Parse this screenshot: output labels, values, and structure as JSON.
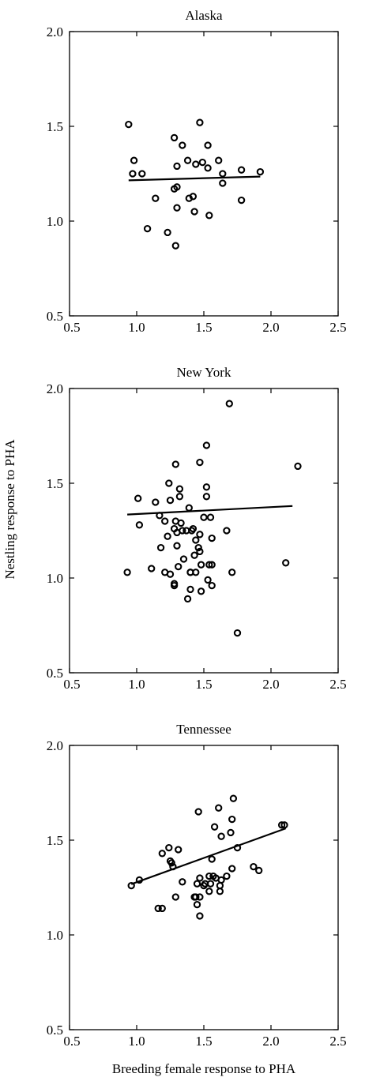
{
  "figure": {
    "ylabel": "Nestling response to PHA",
    "xlabel": "Breeding female response to PHA"
  },
  "chart_data": [
    {
      "type": "scatter",
      "title": "Alaska",
      "xlim": [
        0.5,
        2.5
      ],
      "ylim": [
        0.5,
        2.0
      ],
      "xticks": [
        "0.5",
        "1.0",
        "1.5",
        "2.0",
        "2.5"
      ],
      "yticks": [
        "0.5",
        "1.0",
        "1.5",
        "2.0"
      ],
      "points": [
        [
          0.94,
          1.51
        ],
        [
          0.98,
          1.32
        ],
        [
          0.97,
          1.25
        ],
        [
          1.04,
          1.25
        ],
        [
          1.14,
          1.12
        ],
        [
          1.08,
          0.96
        ],
        [
          1.23,
          0.94
        ],
        [
          1.28,
          1.44
        ],
        [
          1.3,
          1.29
        ],
        [
          1.3,
          1.18
        ],
        [
          1.28,
          1.17
        ],
        [
          1.3,
          1.07
        ],
        [
          1.29,
          0.87
        ],
        [
          1.34,
          1.4
        ],
        [
          1.38,
          1.32
        ],
        [
          1.39,
          1.12
        ],
        [
          1.42,
          1.13
        ],
        [
          1.44,
          1.3
        ],
        [
          1.47,
          1.52
        ],
        [
          1.49,
          1.31
        ],
        [
          1.43,
          1.05
        ],
        [
          1.53,
          1.4
        ],
        [
          1.53,
          1.28
        ],
        [
          1.54,
          1.03
        ],
        [
          1.61,
          1.32
        ],
        [
          1.64,
          1.25
        ],
        [
          1.64,
          1.2
        ],
        [
          1.78,
          1.27
        ],
        [
          1.78,
          1.11
        ],
        [
          1.92,
          1.26
        ]
      ],
      "fit": {
        "x": [
          0.94,
          1.92
        ],
        "y": [
          1.215,
          1.235
        ]
      }
    },
    {
      "type": "scatter",
      "title": "New York",
      "xlim": [
        0.5,
        2.5
      ],
      "ylim": [
        0.5,
        2.0
      ],
      "xticks": [
        "0.5",
        "1.0",
        "1.5",
        "2.0",
        "2.5"
      ],
      "yticks": [
        "0.5",
        "1.0",
        "1.5",
        "2.0"
      ],
      "points": [
        [
          0.93,
          1.03
        ],
        [
          1.01,
          1.42
        ],
        [
          1.02,
          1.28
        ],
        [
          1.11,
          1.05
        ],
        [
          1.14,
          1.4
        ],
        [
          1.17,
          1.33
        ],
        [
          1.18,
          1.16
        ],
        [
          1.21,
          1.3
        ],
        [
          1.21,
          1.03
        ],
        [
          1.23,
          1.22
        ],
        [
          1.24,
          1.5
        ],
        [
          1.25,
          1.41
        ],
        [
          1.25,
          1.02
        ],
        [
          1.28,
          1.26
        ],
        [
          1.28,
          0.97
        ],
        [
          1.28,
          0.96
        ],
        [
          1.29,
          1.6
        ],
        [
          1.29,
          1.3
        ],
        [
          1.3,
          1.24
        ],
        [
          1.3,
          1.17
        ],
        [
          1.31,
          1.06
        ],
        [
          1.32,
          1.47
        ],
        [
          1.32,
          1.43
        ],
        [
          1.33,
          1.29
        ],
        [
          1.34,
          1.25
        ],
        [
          1.35,
          1.1
        ],
        [
          1.37,
          1.25
        ],
        [
          1.38,
          0.89
        ],
        [
          1.39,
          1.37
        ],
        [
          1.4,
          1.03
        ],
        [
          1.4,
          1.03
        ],
        [
          1.4,
          0.94
        ],
        [
          1.41,
          1.25
        ],
        [
          1.42,
          1.26
        ],
        [
          1.43,
          1.12
        ],
        [
          1.44,
          1.2
        ],
        [
          1.44,
          1.03
        ],
        [
          1.46,
          1.16
        ],
        [
          1.47,
          1.14
        ],
        [
          1.47,
          1.61
        ],
        [
          1.47,
          1.23
        ],
        [
          1.48,
          1.07
        ],
        [
          1.48,
          0.93
        ],
        [
          1.5,
          1.32
        ],
        [
          1.52,
          1.7
        ],
        [
          1.52,
          1.48
        ],
        [
          1.52,
          1.43
        ],
        [
          1.53,
          0.99
        ],
        [
          1.54,
          1.07
        ],
        [
          1.55,
          1.32
        ],
        [
          1.56,
          1.21
        ],
        [
          1.56,
          1.07
        ],
        [
          1.56,
          0.96
        ],
        [
          1.67,
          1.25
        ],
        [
          1.69,
          1.92
        ],
        [
          1.71,
          1.03
        ],
        [
          1.75,
          0.71
        ],
        [
          2.11,
          1.08
        ],
        [
          2.2,
          1.59
        ]
      ],
      "fit": {
        "x": [
          0.93,
          2.16
        ],
        "y": [
          1.335,
          1.38
        ]
      }
    },
    {
      "type": "scatter",
      "title": "Tennessee",
      "xlim": [
        0.5,
        2.5
      ],
      "ylim": [
        0.5,
        2.0
      ],
      "xticks": [
        "0.5",
        "1.0",
        "1.5",
        "2.0",
        "2.5"
      ],
      "yticks": [
        "0.5",
        "1.0",
        "1.5",
        "2.0"
      ],
      "points": [
        [
          0.96,
          1.26
        ],
        [
          1.02,
          1.29
        ],
        [
          1.16,
          1.14
        ],
        [
          1.19,
          1.14
        ],
        [
          1.19,
          1.43
        ],
        [
          1.24,
          1.46
        ],
        [
          1.25,
          1.39
        ],
        [
          1.26,
          1.38
        ],
        [
          1.27,
          1.36
        ],
        [
          1.29,
          1.2
        ],
        [
          1.31,
          1.45
        ],
        [
          1.34,
          1.28
        ],
        [
          1.43,
          1.2
        ],
        [
          1.44,
          1.2
        ],
        [
          1.45,
          1.16
        ],
        [
          1.45,
          1.27
        ],
        [
          1.46,
          1.65
        ],
        [
          1.47,
          1.3
        ],
        [
          1.47,
          1.2
        ],
        [
          1.47,
          1.1
        ],
        [
          1.5,
          1.26
        ],
        [
          1.51,
          1.27
        ],
        [
          1.54,
          1.31
        ],
        [
          1.54,
          1.23
        ],
        [
          1.55,
          1.27
        ],
        [
          1.56,
          1.4
        ],
        [
          1.57,
          1.31
        ],
        [
          1.58,
          1.57
        ],
        [
          1.59,
          1.3
        ],
        [
          1.61,
          1.67
        ],
        [
          1.62,
          1.26
        ],
        [
          1.62,
          1.23
        ],
        [
          1.63,
          1.52
        ],
        [
          1.63,
          1.29
        ],
        [
          1.67,
          1.31
        ],
        [
          1.7,
          1.54
        ],
        [
          1.71,
          1.61
        ],
        [
          1.71,
          1.35
        ],
        [
          1.72,
          1.72
        ],
        [
          1.75,
          1.46
        ],
        [
          1.87,
          1.36
        ],
        [
          1.91,
          1.34
        ],
        [
          2.08,
          1.58
        ],
        [
          2.1,
          1.58
        ]
      ],
      "fit": {
        "x": [
          0.96,
          2.11
        ],
        "y": [
          1.268,
          1.562
        ]
      }
    }
  ]
}
